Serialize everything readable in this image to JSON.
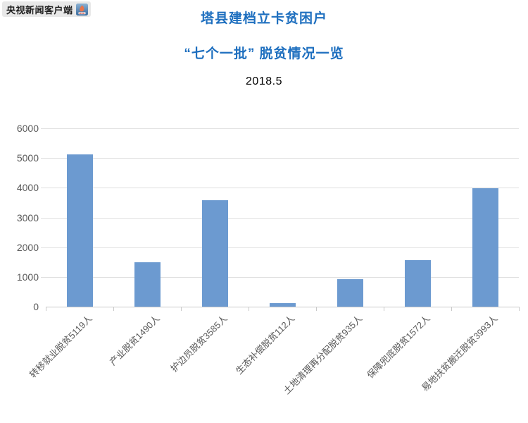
{
  "badge": {
    "label": "央视新闻客户端",
    "icon": "cctv-news-app-icon"
  },
  "titles": {
    "line1": "塔县建档立卡贫困户",
    "line2": "“七个一批” 脱贫情况一览",
    "date": "2018.5"
  },
  "colors": {
    "title": "#1e6fbf",
    "bar": "#6c9ad0",
    "gridline": "#e0e0e0",
    "axis": "#c9c9c9",
    "tick_label": "#595959"
  },
  "chart_data": {
    "type": "bar",
    "title": "塔县建档立卡贫困户 “七个一批” 脱贫情况一览 2018.5",
    "categories": [
      "转移就业脱贫5119人",
      "产业脱贫1490人",
      "护边员脱贫3585人",
      "生态补偿脱贫112人",
      "土地清理再分配脱贫935人",
      "保障兜底脱贫1572人",
      "易地扶贫搬迁脱贫3993人"
    ],
    "values": [
      5119,
      1490,
      3585,
      112,
      935,
      1572,
      3993
    ],
    "xlabel": "",
    "ylabel": "",
    "ylim": [
      0,
      6000
    ],
    "yticks": [
      0,
      1000,
      2000,
      3000,
      4000,
      5000,
      6000
    ],
    "grid": true,
    "legend": "none",
    "bar_color": "#6c9ad0",
    "x_label_rotation_deg": 45
  }
}
